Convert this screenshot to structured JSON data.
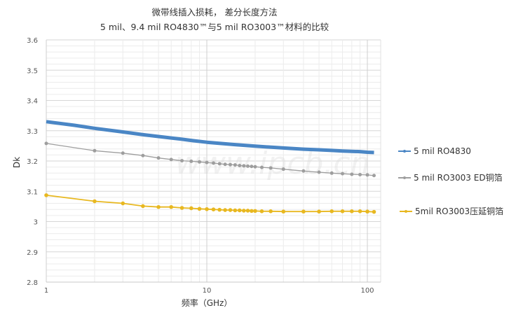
{
  "chart_data": {
    "type": "line",
    "title": "微带线插入损耗， 差分长度方法",
    "subtitle": "5 mil、9.4 mil RO4830™与5 mil RO3003™材料的比较",
    "xlabel": "频率（GHz）",
    "ylabel": "Dk",
    "x_scale": "log",
    "xlim": [
      1,
      120
    ],
    "ylim": [
      2.8,
      3.6
    ],
    "x_ticks": [
      "1",
      "10",
      "100"
    ],
    "y_ticks": [
      "2.8",
      "2.9",
      "3",
      "3.1",
      "3.2",
      "3.3",
      "3.4",
      "3.5",
      "3.6"
    ],
    "grid": true,
    "legend_position": "right",
    "watermark": "www.ipcb.cn",
    "series": [
      {
        "name": "5 mil RO4830",
        "color": "#4a86c5",
        "x": [
          1,
          1.5,
          2,
          3,
          4,
          5,
          6,
          7,
          8,
          10,
          15,
          20,
          30,
          40,
          50,
          60,
          70,
          80,
          90,
          100,
          110
        ],
        "y": [
          3.33,
          3.318,
          3.308,
          3.296,
          3.287,
          3.281,
          3.276,
          3.272,
          3.268,
          3.262,
          3.254,
          3.249,
          3.243,
          3.239,
          3.237,
          3.235,
          3.233,
          3.232,
          3.231,
          3.229,
          3.228
        ]
      },
      {
        "name": "5 mil RO3003 ED铜箔",
        "color": "#9e9e9e",
        "x": [
          1,
          2,
          3,
          4,
          5,
          6,
          7,
          8,
          9,
          10,
          11,
          12,
          13,
          14,
          15,
          16,
          17,
          18,
          19,
          20,
          22,
          25,
          30,
          40,
          50,
          60,
          70,
          80,
          90,
          100,
          110
        ],
        "y": [
          3.258,
          3.234,
          3.226,
          3.218,
          3.21,
          3.205,
          3.201,
          3.199,
          3.197,
          3.195,
          3.193,
          3.191,
          3.189,
          3.188,
          3.187,
          3.185,
          3.184,
          3.183,
          3.182,
          3.181,
          3.179,
          3.177,
          3.173,
          3.167,
          3.163,
          3.16,
          3.158,
          3.156,
          3.155,
          3.154,
          3.152
        ]
      },
      {
        "name": "5mil RO3003压延铜箔",
        "color": "#e8b820",
        "x": [
          1,
          2,
          3,
          4,
          5,
          6,
          7,
          8,
          9,
          10,
          11,
          12,
          13,
          14,
          15,
          16,
          17,
          18,
          19,
          20,
          22,
          25,
          30,
          40,
          50,
          60,
          70,
          80,
          90,
          100,
          110
        ],
        "y": [
          3.087,
          3.067,
          3.06,
          3.051,
          3.048,
          3.048,
          3.045,
          3.044,
          3.042,
          3.041,
          3.04,
          3.039,
          3.038,
          3.038,
          3.037,
          3.037,
          3.036,
          3.036,
          3.035,
          3.035,
          3.034,
          3.034,
          3.033,
          3.033,
          3.033,
          3.034,
          3.034,
          3.034,
          3.034,
          3.033,
          3.032
        ]
      }
    ]
  }
}
